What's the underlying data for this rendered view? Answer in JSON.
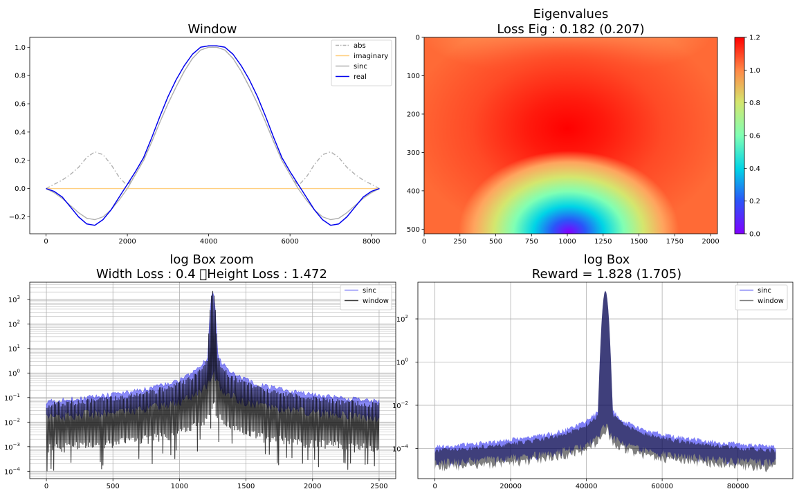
{
  "figure": {
    "width": 1152,
    "height": 720
  },
  "chart_data": [
    {
      "id": "window",
      "type": "line",
      "title_lines": [
        "Window"
      ],
      "xlim": [
        -400,
        8600
      ],
      "ylim": [
        -0.32,
        1.07
      ],
      "xticks": [
        0,
        2000,
        4000,
        6000,
        8000
      ],
      "yticks": [
        -0.2,
        0.0,
        0.2,
        0.4,
        0.6,
        0.8,
        1.0
      ],
      "ytick_labels": [
        "−0.2",
        "0.0",
        "0.2",
        "0.4",
        "0.6",
        "0.8",
        "1.0"
      ],
      "grid": false,
      "legend": {
        "placement": "top-right",
        "entries": [
          "abs",
          "imaginary",
          "sinc",
          "real"
        ]
      },
      "series": [
        {
          "name": "abs",
          "color": "#b0b0b0",
          "dash": "dashdot",
          "x": [
            0,
            200,
            400,
            600,
            800,
            1000,
            1200,
            1400,
            1600,
            1800,
            2000,
            2200,
            2400,
            2600,
            2800,
            3000,
            3200,
            3400,
            3600,
            3800,
            4000,
            4100,
            4200,
            4400,
            4600,
            4800,
            5000,
            5200,
            5400,
            5600,
            5800,
            6000,
            6200,
            6400,
            6600,
            6800,
            7000,
            7200,
            7400,
            7600,
            7800,
            8000,
            8200
          ],
          "y": [
            0.0,
            0.03,
            0.06,
            0.1,
            0.15,
            0.22,
            0.26,
            0.24,
            0.17,
            0.08,
            0.02,
            0.1,
            0.2,
            0.33,
            0.47,
            0.6,
            0.72,
            0.83,
            0.92,
            0.98,
            1.0,
            1.0,
            1.0,
            0.98,
            0.92,
            0.83,
            0.72,
            0.6,
            0.47,
            0.33,
            0.2,
            0.1,
            0.02,
            0.08,
            0.17,
            0.24,
            0.26,
            0.22,
            0.15,
            0.1,
            0.06,
            0.03,
            0.0
          ]
        },
        {
          "name": "imaginary",
          "color": "#ffcf80",
          "dash": "solid",
          "x": [
            0,
            8200
          ],
          "y": [
            0.0,
            0.0
          ]
        },
        {
          "name": "sinc",
          "color": "#b0b0b0",
          "dash": "solid",
          "x": [
            0,
            200,
            400,
            600,
            800,
            1000,
            1200,
            1400,
            1600,
            1800,
            2000,
            2200,
            2400,
            2600,
            2800,
            3000,
            3200,
            3400,
            3600,
            3800,
            4000,
            4100,
            4200,
            4400,
            4600,
            4800,
            5000,
            5200,
            5400,
            5600,
            5800,
            6000,
            6200,
            6400,
            6600,
            6800,
            7000,
            7200,
            7400,
            7600,
            7800,
            8000,
            8200
          ],
          "y": [
            0.0,
            -0.03,
            -0.07,
            -0.12,
            -0.17,
            -0.21,
            -0.22,
            -0.2,
            -0.15,
            -0.08,
            0.0,
            0.1,
            0.2,
            0.33,
            0.47,
            0.6,
            0.72,
            0.83,
            0.92,
            0.98,
            1.0,
            1.0,
            1.0,
            0.98,
            0.92,
            0.83,
            0.72,
            0.6,
            0.47,
            0.33,
            0.2,
            0.1,
            0.0,
            -0.08,
            -0.15,
            -0.2,
            -0.22,
            -0.21,
            -0.17,
            -0.12,
            -0.07,
            -0.03,
            0.0
          ]
        },
        {
          "name": "real",
          "color": "#0000ee",
          "dash": "solid",
          "x": [
            0,
            200,
            400,
            600,
            800,
            1000,
            1200,
            1400,
            1600,
            1800,
            2000,
            2200,
            2400,
            2600,
            2800,
            3000,
            3200,
            3400,
            3600,
            3800,
            4000,
            4100,
            4200,
            4400,
            4600,
            4800,
            5000,
            5200,
            5400,
            5600,
            5800,
            6000,
            6200,
            6400,
            6600,
            6800,
            7000,
            7200,
            7400,
            7600,
            7800,
            8000,
            8200
          ],
          "y": [
            0.0,
            -0.02,
            -0.06,
            -0.13,
            -0.2,
            -0.25,
            -0.26,
            -0.22,
            -0.15,
            -0.06,
            0.03,
            0.12,
            0.22,
            0.36,
            0.51,
            0.65,
            0.77,
            0.87,
            0.95,
            1.0,
            1.01,
            1.01,
            1.01,
            1.0,
            0.95,
            0.87,
            0.77,
            0.65,
            0.51,
            0.36,
            0.22,
            0.12,
            0.03,
            -0.06,
            -0.15,
            -0.22,
            -0.26,
            -0.25,
            -0.2,
            -0.13,
            -0.06,
            -0.02,
            0.0
          ]
        }
      ]
    },
    {
      "id": "eigen",
      "type": "heatmap",
      "title_lines": [
        "Eigenvalues",
        "Loss Eig : 0.182 (0.207)"
      ],
      "xlim": [
        0,
        2048
      ],
      "ylim": [
        512,
        0
      ],
      "xticks": [
        0,
        250,
        500,
        750,
        1000,
        1250,
        1500,
        1750,
        2000
      ],
      "yticks": [
        0,
        100,
        200,
        300,
        400,
        500
      ],
      "colormap": "rainbow",
      "colorbar": {
        "range": [
          0.0,
          1.2
        ],
        "ticks": [
          0.0,
          0.2,
          0.4,
          0.6,
          0.8,
          1.0,
          1.2
        ],
        "tick_labels": [
          "0.0",
          "0.2",
          "0.4",
          "0.6",
          "0.8",
          "1.0",
          "1.2"
        ]
      },
      "features": {
        "max": {
          "x": 1024,
          "y": 250,
          "value": 1.2
        },
        "min": {
          "x": 1024,
          "y": 512,
          "value": 0.0
        },
        "edge_value": 0.95
      }
    },
    {
      "id": "logzoom",
      "type": "line",
      "title_lines": [
        "log Box zoom",
        "Width Loss : 0.4 \u0000Height Loss : 1.472"
      ],
      "xlim": [
        -125,
        2625
      ],
      "yscale": "log",
      "ylim": [
        5e-05,
        5000
      ],
      "xticks": [
        0,
        500,
        1000,
        1500,
        2000,
        2500
      ],
      "ytick_exps": [
        -4,
        -3,
        -2,
        -1,
        0,
        1,
        2,
        3
      ],
      "grid": "major-and-minor",
      "legend": {
        "placement": "top-right",
        "entries": [
          "sinc",
          "window"
        ]
      },
      "series": [
        {
          "name": "sinc",
          "color": "#0000ee",
          "alpha": 0.45,
          "center": 1250,
          "peak": 2000,
          "edge_upper": 0.07,
          "edge_lower": 0.02
        },
        {
          "name": "window",
          "color": "#000000",
          "alpha": 0.75,
          "center": 1250,
          "peak": 2200,
          "edge_upper": 0.05,
          "edge_lower": 0.001
        }
      ]
    },
    {
      "id": "logbox",
      "type": "area",
      "title_lines": [
        "log Box",
        "Reward = 1.828 (1.705)"
      ],
      "xlim": [
        -4500,
        94500
      ],
      "yscale": "log",
      "ylim": [
        4e-06,
        5000
      ],
      "xticks": [
        0,
        20000,
        40000,
        60000,
        80000
      ],
      "ytick_exps": [
        -4,
        -2,
        0,
        2
      ],
      "grid": "major",
      "legend": {
        "placement": "top-right",
        "entries": [
          "sinc",
          "window"
        ]
      },
      "series": [
        {
          "name": "sinc",
          "color": "#0000ee",
          "alpha": 0.5,
          "center": 45000,
          "xmax": 90000,
          "peak": 2000,
          "edge_upper": 0.00012,
          "edge_lower": 2.5e-05
        },
        {
          "name": "window",
          "color": "#000000",
          "alpha": 0.5,
          "center": 45000,
          "xmax": 90000,
          "peak": 2000,
          "edge_upper": 8e-05,
          "edge_lower": 1.5e-05
        }
      ]
    }
  ]
}
